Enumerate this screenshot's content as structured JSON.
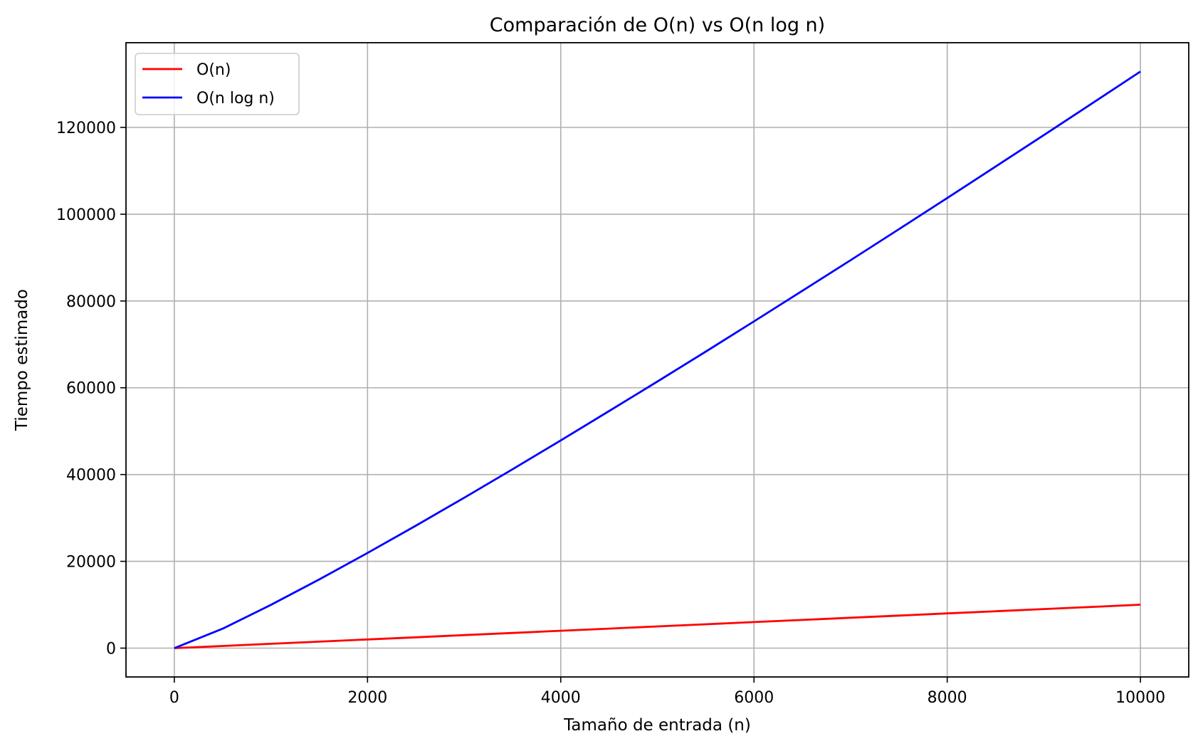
{
  "chart_data": {
    "type": "line",
    "title": "Comparación de O(n) vs O(n log n)",
    "xlabel": "Tamaño de entrada (n)",
    "ylabel": "Tiempo estimado",
    "xlim": [
      -500,
      10500
    ],
    "ylim": [
      -6644,
      139520
    ],
    "x_ticks": [
      0,
      2000,
      4000,
      6000,
      8000,
      10000
    ],
    "y_ticks": [
      0,
      20000,
      40000,
      60000,
      80000,
      100000,
      120000
    ],
    "x_tick_labels": [
      "0",
      "2000",
      "4000",
      "6000",
      "8000",
      "10000"
    ],
    "y_tick_labels": [
      "0",
      "20000",
      "40000",
      "60000",
      "80000",
      "100000",
      "120000"
    ],
    "grid": true,
    "legend_position": "upper-left",
    "x": [
      1,
      500,
      1000,
      1500,
      2000,
      2500,
      3000,
      3500,
      4000,
      4500,
      5000,
      5500,
      6000,
      6500,
      7000,
      7500,
      8000,
      8500,
      9000,
      9500,
      10000
    ],
    "series": [
      {
        "name": "O(n)",
        "color": "#ff0000",
        "values": [
          1,
          500,
          1000,
          1500,
          2000,
          2500,
          3000,
          3500,
          4000,
          4500,
          5000,
          5500,
          6000,
          6500,
          7000,
          7500,
          8000,
          8500,
          9000,
          9500,
          10000
        ]
      },
      {
        "name": "O(n log n)",
        "color": "#0000ff",
        "values": [
          0,
          4483,
          9966,
          15826,
          21932,
          28219,
          34652,
          41210,
          47863,
          54622,
          61439,
          68332,
          75304,
          82331,
          89412,
          96547,
          103726,
          110963,
          118228,
          125537,
          132877
        ]
      }
    ]
  }
}
